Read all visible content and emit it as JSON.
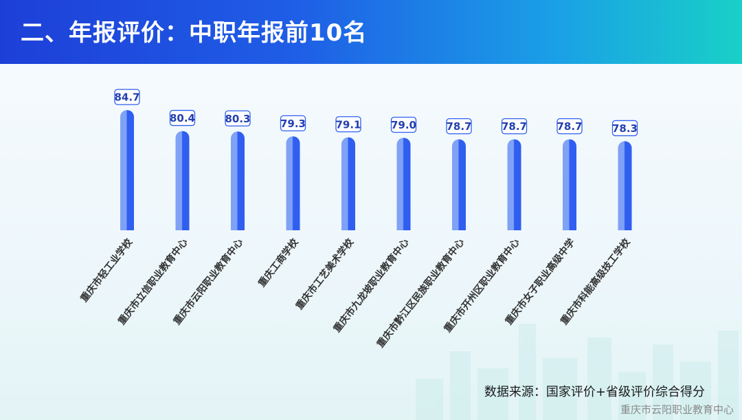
{
  "header": {
    "title": "二、年报评价：中职年报前10名"
  },
  "chart_data": {
    "type": "bar",
    "categories": [
      "重庆市轻工业学校",
      "重庆市立信职业教育中心",
      "重庆市云阳职业教育中心",
      "重庆工商学校",
      "重庆市工艺美术学校",
      "重庆市九龙坡职业教育中心",
      "重庆市黔江区民族职业教育中心",
      "重庆市开州区职业教育中心",
      "重庆市女子职业高级中学",
      "重庆市科能高级技工学校"
    ],
    "values": [
      84.7,
      80.4,
      80.3,
      79.3,
      79.1,
      79.0,
      78.7,
      78.7,
      78.7,
      78.3
    ],
    "value_labels": [
      "84.7",
      "80.4",
      "80.3",
      "79.3",
      "79.1",
      "79.0",
      "78.7",
      "78.7",
      "78.7",
      "78.3"
    ],
    "ylim": [
      60,
      85
    ],
    "bar_color": "#2f5ef0",
    "bar_light_color": "#7fa2f6",
    "label_border_color": "#2f5ef0",
    "grid": false
  },
  "footer": {
    "source": "数据来源：国家评价+省级评价综合得分",
    "watermark": "重庆市云阳职业教育中心"
  }
}
